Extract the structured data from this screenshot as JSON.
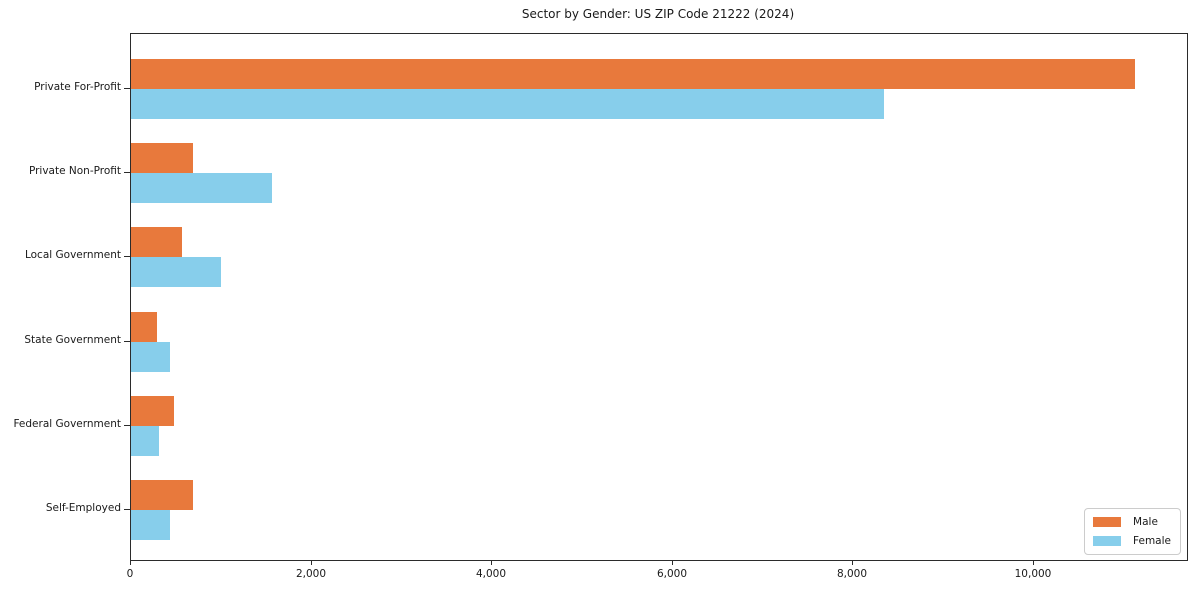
{
  "chart_data": {
    "type": "bar",
    "orientation": "horizontal",
    "title": "Sector by Gender: US ZIP Code 21222 (2024)",
    "categories": [
      "Private For-Profit",
      "Private Non-Profit",
      "Local Government",
      "State Government",
      "Federal Government",
      "Self-Employed"
    ],
    "series": [
      {
        "name": "Male",
        "color": "#E8793C",
        "values": [
          11125,
          685,
          560,
          290,
          480,
          690
        ]
      },
      {
        "name": "Female",
        "color": "#87CEEB",
        "values": [
          8340,
          1560,
          995,
          435,
          310,
          430
        ]
      }
    ],
    "xlabel": "",
    "ylabel": "",
    "xlim": [
      0,
      11700
    ],
    "xticks": [
      0,
      2000,
      4000,
      6000,
      8000,
      10000
    ],
    "xtick_labels": [
      "0",
      "2,000",
      "4,000",
      "6,000",
      "8,000",
      "10,000"
    ],
    "grid": false,
    "legend": {
      "position": "lower right",
      "entries": [
        "Male",
        "Female"
      ]
    },
    "colors": {
      "background": "#ffffff",
      "axis": "#2b2b2b",
      "text": "#1a1a1a"
    }
  }
}
